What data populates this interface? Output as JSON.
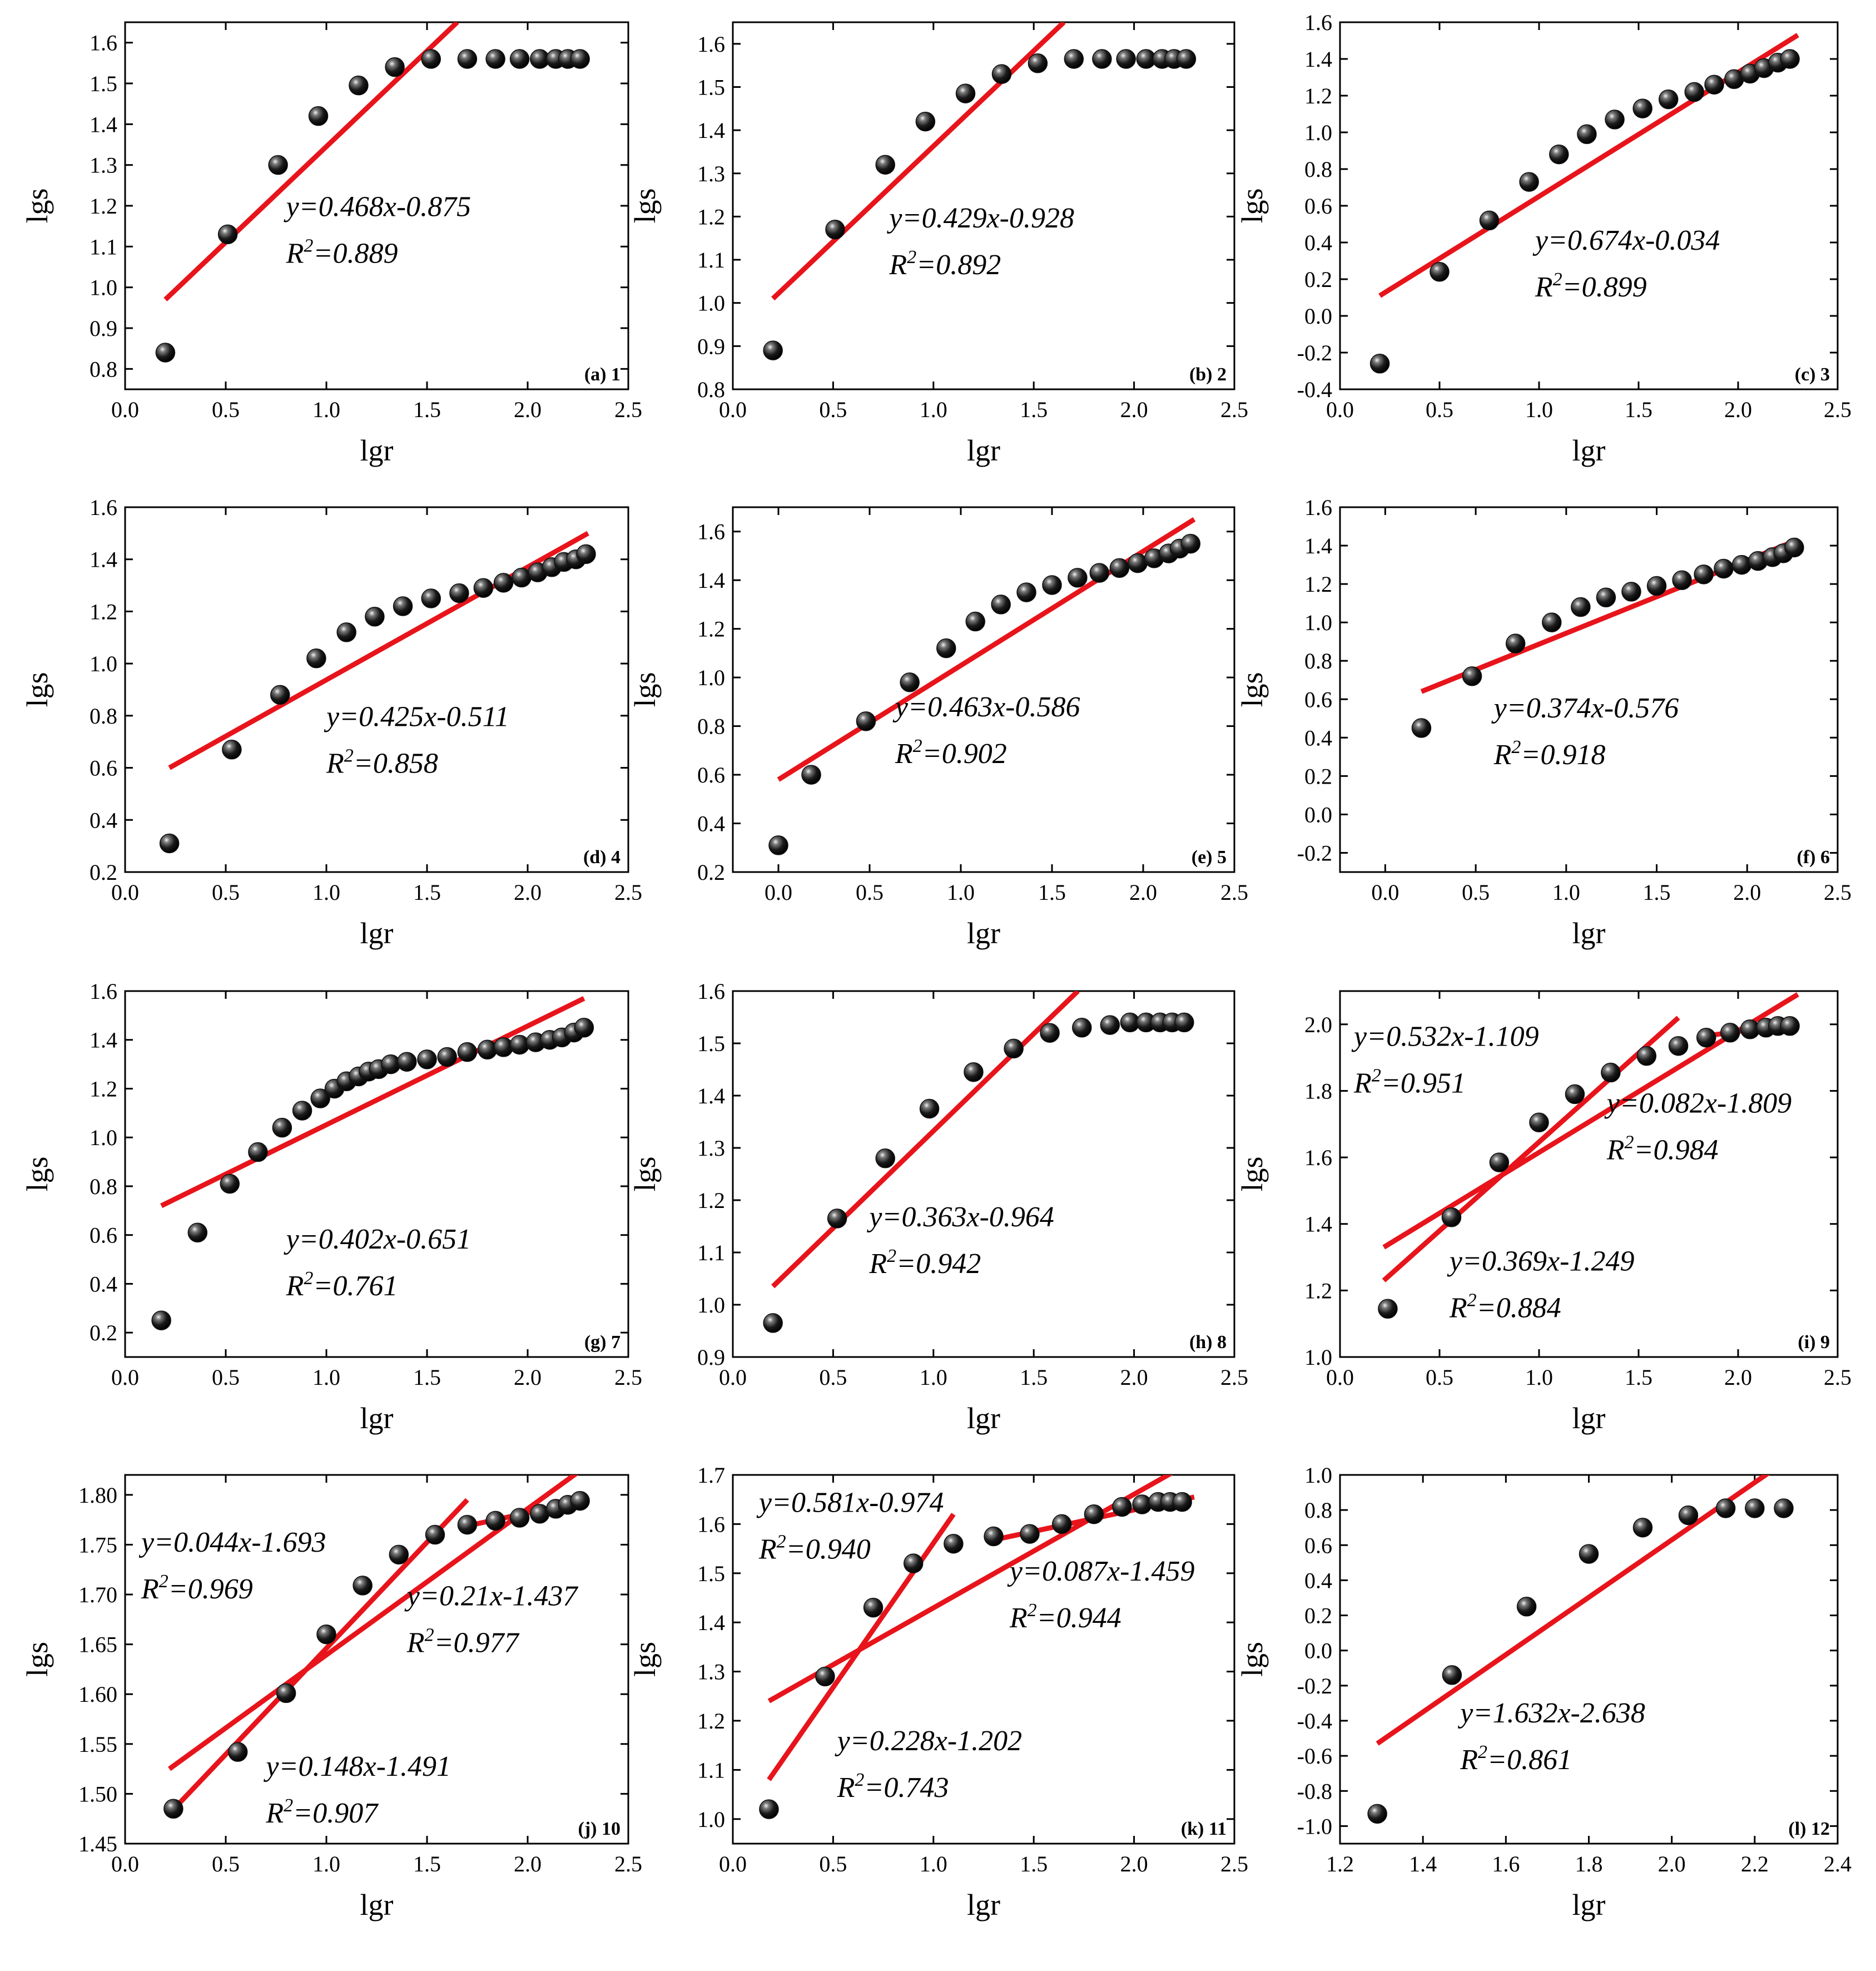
{
  "figure": {
    "x_label": "lgr",
    "y_label": "lgs"
  },
  "colors": {
    "fit_line": "#e8141b",
    "point_fill": "#111111",
    "axis": "#000000"
  },
  "chart_data": [
    {
      "type": "scatter",
      "panel": "(a) 1",
      "xlabel": "lgr",
      "ylabel": "lgs",
      "xlim": [
        0,
        2.5
      ],
      "ylim": [
        0.75,
        1.65
      ],
      "xticks": [
        0.0,
        0.5,
        1.0,
        1.5,
        2.0,
        2.5
      ],
      "xtick_labels": [
        "0.0",
        "0.5",
        "1.0",
        "1.5",
        "2.0",
        "2.5"
      ],
      "yticks": [
        0.8,
        0.9,
        1.0,
        1.1,
        1.2,
        1.3,
        1.4,
        1.5,
        1.6
      ],
      "ytick_labels": [
        "0.8",
        "0.9",
        "1.0",
        "1.1",
        "1.2",
        "1.3",
        "1.4",
        "1.5",
        "1.6"
      ],
      "x": [
        0.2,
        0.51,
        0.76,
        0.96,
        1.16,
        1.34,
        1.52,
        1.7,
        1.84,
        1.96,
        2.06,
        2.14,
        2.2,
        2.26
      ],
      "y": [
        0.84,
        1.13,
        1.3,
        1.42,
        1.495,
        1.54,
        1.56,
        1.56,
        1.56,
        1.56,
        1.56,
        1.56,
        1.56,
        1.56
      ],
      "fits": [
        {
          "x0": 0.2,
          "y0": 0.97,
          "x1": 1.65,
          "y1": 1.65,
          "equation": "y=0.468x-0.875",
          "r2": "=0.889",
          "eq_at": [
            0.8,
            1.175
          ]
        }
      ]
    },
    {
      "type": "scatter",
      "panel": "(b) 2",
      "xlabel": "lgr",
      "ylabel": "lgs",
      "xlim": [
        0,
        2.5
      ],
      "ylim": [
        0.8,
        1.65
      ],
      "xticks": [
        0.0,
        0.5,
        1.0,
        1.5,
        2.0,
        2.5
      ],
      "xtick_labels": [
        "0.0",
        "0.5",
        "1.0",
        "1.5",
        "2.0",
        "2.5"
      ],
      "yticks": [
        0.8,
        0.9,
        1.0,
        1.1,
        1.2,
        1.3,
        1.4,
        1.5,
        1.6
      ],
      "ytick_labels": [
        "0.8",
        "0.9",
        "1.0",
        "1.1",
        "1.2",
        "1.3",
        "1.4",
        "1.5",
        "1.6"
      ],
      "x": [
        0.2,
        0.51,
        0.76,
        0.96,
        1.16,
        1.34,
        1.52,
        1.7,
        1.84,
        1.96,
        2.06,
        2.14,
        2.2,
        2.26
      ],
      "y": [
        0.89,
        1.17,
        1.32,
        1.42,
        1.485,
        1.53,
        1.555,
        1.565,
        1.565,
        1.565,
        1.565,
        1.565,
        1.565,
        1.565
      ],
      "fits": [
        {
          "x0": 0.2,
          "y0": 1.01,
          "x1": 1.65,
          "y1": 1.65,
          "equation": "y=0.429x-0.928",
          "r2": "=0.892",
          "eq_at": [
            0.78,
            1.175
          ]
        }
      ]
    },
    {
      "type": "scatter",
      "panel": "(c) 3",
      "xlabel": "lgr",
      "ylabel": "lgs",
      "xlim": [
        0,
        2.5
      ],
      "ylim": [
        -0.4,
        1.6
      ],
      "xticks": [
        0.0,
        0.5,
        1.0,
        1.5,
        2.0,
        2.5
      ],
      "xtick_labels": [
        "0.0",
        "0.5",
        "1.0",
        "1.5",
        "2.0",
        "2.5"
      ],
      "yticks": [
        -0.4,
        -0.2,
        0.0,
        0.2,
        0.4,
        0.6,
        0.8,
        1.0,
        1.2,
        1.4,
        1.6
      ],
      "ytick_labels": [
        "-0.4",
        "-0.2",
        "0.0",
        "0.2",
        "0.4",
        "0.6",
        "0.8",
        "1.0",
        "1.2",
        "1.4",
        "1.6"
      ],
      "x": [
        0.2,
        0.5,
        0.75,
        0.95,
        1.1,
        1.24,
        1.38,
        1.52,
        1.65,
        1.78,
        1.88,
        1.98,
        2.06,
        2.13,
        2.2,
        2.26
      ],
      "y": [
        -0.26,
        0.24,
        0.52,
        0.73,
        0.88,
        0.99,
        1.07,
        1.13,
        1.18,
        1.22,
        1.26,
        1.29,
        1.32,
        1.35,
        1.38,
        1.4
      ],
      "fits": [
        {
          "x0": 0.2,
          "y0": 0.11,
          "x1": 2.3,
          "y1": 1.53,
          "equation": "y=0.674x-0.034",
          "r2": "=0.899",
          "eq_at": [
            0.98,
            0.36
          ]
        }
      ]
    },
    {
      "type": "scatter",
      "panel": "(d) 4",
      "xlabel": "lgr",
      "ylabel": "lgs",
      "xlim": [
        0,
        2.5
      ],
      "ylim": [
        0.2,
        1.6
      ],
      "xticks": [
        0.0,
        0.5,
        1.0,
        1.5,
        2.0,
        2.5
      ],
      "xtick_labels": [
        "0.0",
        "0.5",
        "1.0",
        "1.5",
        "2.0",
        "2.5"
      ],
      "yticks": [
        0.2,
        0.4,
        0.6,
        0.8,
        1.0,
        1.2,
        1.4,
        1.6
      ],
      "ytick_labels": [
        "0.2",
        "0.4",
        "0.6",
        "0.8",
        "1.0",
        "1.2",
        "1.4",
        "1.6"
      ],
      "x": [
        0.22,
        0.53,
        0.77,
        0.95,
        1.1,
        1.24,
        1.38,
        1.52,
        1.66,
        1.78,
        1.88,
        1.97,
        2.05,
        2.12,
        2.18,
        2.24,
        2.29
      ],
      "y": [
        0.31,
        0.67,
        0.88,
        1.02,
        1.12,
        1.18,
        1.22,
        1.25,
        1.27,
        1.29,
        1.31,
        1.33,
        1.35,
        1.37,
        1.39,
        1.4,
        1.42
      ],
      "fits": [
        {
          "x0": 0.22,
          "y0": 0.6,
          "x1": 2.3,
          "y1": 1.5,
          "equation": "y=0.425x-0.511",
          "r2": "=0.858",
          "eq_at": [
            1.0,
            0.76
          ]
        }
      ]
    },
    {
      "type": "scatter",
      "panel": "(e) 5",
      "xlabel": "lgr",
      "ylabel": "lgs",
      "xlim": [
        -0.25,
        2.5
      ],
      "ylim": [
        0.2,
        1.7
      ],
      "xticks": [
        0.0,
        0.5,
        1.0,
        1.5,
        2.0,
        2.5
      ],
      "xtick_labels": [
        "0.0",
        "0.5",
        "1.0",
        "1.5",
        "2.0",
        "2.5"
      ],
      "yticks": [
        0.2,
        0.4,
        0.6,
        0.8,
        1.0,
        1.2,
        1.4,
        1.6
      ],
      "ytick_labels": [
        "0.2",
        "0.4",
        "0.6",
        "0.8",
        "1.0",
        "1.2",
        "1.4",
        "1.6"
      ],
      "x": [
        0.0,
        0.18,
        0.48,
        0.72,
        0.92,
        1.08,
        1.22,
        1.36,
        1.5,
        1.64,
        1.76,
        1.87,
        1.97,
        2.06,
        2.14,
        2.2,
        2.26
      ],
      "y": [
        0.31,
        0.6,
        0.82,
        0.98,
        1.12,
        1.23,
        1.3,
        1.35,
        1.38,
        1.41,
        1.43,
        1.45,
        1.47,
        1.49,
        1.51,
        1.53,
        1.55
      ],
      "fits": [
        {
          "x0": 0.0,
          "y0": 0.58,
          "x1": 2.28,
          "y1": 1.65,
          "equation": "y=0.463x-0.586",
          "r2": "=0.902",
          "eq_at": [
            0.64,
            0.84
          ]
        }
      ]
    },
    {
      "type": "scatter",
      "panel": "(f) 6",
      "xlabel": "lgr",
      "ylabel": "lgs",
      "xlim": [
        -0.25,
        2.5
      ],
      "ylim": [
        -0.3,
        1.6
      ],
      "xticks": [
        0.0,
        0.5,
        1.0,
        1.5,
        2.0,
        2.5
      ],
      "xtick_labels": [
        "0.0",
        "0.5",
        "1.0",
        "1.5",
        "2.0",
        "2.5"
      ],
      "yticks": [
        -0.2,
        0.0,
        0.2,
        0.4,
        0.6,
        0.8,
        1.0,
        1.2,
        1.4,
        1.6
      ],
      "ytick_labels": [
        "-0.2",
        "0.0",
        "0.2",
        "0.4",
        "0.6",
        "0.8",
        "1.0",
        "1.2",
        "1.4",
        "1.6"
      ],
      "x": [
        0.2,
        0.48,
        0.72,
        0.92,
        1.08,
        1.22,
        1.36,
        1.5,
        1.64,
        1.76,
        1.87,
        1.97,
        2.06,
        2.14,
        2.2,
        2.26
      ],
      "y": [
        0.45,
        0.72,
        0.89,
        1.0,
        1.08,
        1.13,
        1.16,
        1.19,
        1.22,
        1.25,
        1.28,
        1.3,
        1.32,
        1.34,
        1.36,
        1.39
      ],
      "fits": [
        {
          "x0": 0.2,
          "y0": 0.64,
          "x1": 2.28,
          "y1": 1.43,
          "equation": "y=0.374x-0.576",
          "r2": "=0.918",
          "eq_at": [
            0.6,
            0.505
          ]
        }
      ]
    },
    {
      "type": "scatter",
      "panel": "(g) 7",
      "xlabel": "lgr",
      "ylabel": "lgs",
      "xlim": [
        0,
        2.5
      ],
      "ylim": [
        0.1,
        1.6
      ],
      "xticks": [
        0.0,
        0.5,
        1.0,
        1.5,
        2.0,
        2.5
      ],
      "xtick_labels": [
        "0.0",
        "0.5",
        "1.0",
        "1.5",
        "2.0",
        "2.5"
      ],
      "yticks": [
        0.2,
        0.4,
        0.6,
        0.8,
        1.0,
        1.2,
        1.4,
        1.6
      ],
      "ytick_labels": [
        "0.2",
        "0.4",
        "0.6",
        "0.8",
        "1.0",
        "1.2",
        "1.4",
        "1.6"
      ],
      "x": [
        0.18,
        0.36,
        0.52,
        0.66,
        0.78,
        0.88,
        0.97,
        1.04,
        1.1,
        1.16,
        1.21,
        1.26,
        1.32,
        1.4,
        1.5,
        1.6,
        1.7,
        1.8,
        1.88,
        1.96,
        2.04,
        2.11,
        2.17,
        2.23,
        2.28
      ],
      "y": [
        0.25,
        0.61,
        0.81,
        0.94,
        1.04,
        1.11,
        1.16,
        1.2,
        1.23,
        1.25,
        1.27,
        1.28,
        1.3,
        1.31,
        1.32,
        1.33,
        1.35,
        1.36,
        1.37,
        1.38,
        1.39,
        1.4,
        1.41,
        1.43,
        1.45
      ],
      "fits": [
        {
          "x0": 0.18,
          "y0": 0.72,
          "x1": 2.28,
          "y1": 1.57,
          "equation": "y=0.402x-0.651",
          "r2": "=0.761",
          "eq_at": [
            0.8,
            0.545
          ]
        }
      ]
    },
    {
      "type": "scatter",
      "panel": "(h) 8",
      "xlabel": "lgr",
      "ylabel": "lgs",
      "xlim": [
        0,
        2.5
      ],
      "ylim": [
        0.9,
        1.6
      ],
      "xticks": [
        0.0,
        0.5,
        1.0,
        1.5,
        2.0,
        2.5
      ],
      "xtick_labels": [
        "0.0",
        "0.5",
        "1.0",
        "1.5",
        "2.0",
        "2.5"
      ],
      "yticks": [
        0.9,
        1.0,
        1.1,
        1.2,
        1.3,
        1.4,
        1.5,
        1.6
      ],
      "ytick_labels": [
        "0.9",
        "1.0",
        "1.1",
        "1.2",
        "1.3",
        "1.4",
        "1.5",
        "1.6"
      ],
      "x": [
        0.2,
        0.52,
        0.76,
        0.98,
        1.2,
        1.4,
        1.58,
        1.74,
        1.88,
        1.98,
        2.06,
        2.13,
        2.19,
        2.25
      ],
      "y": [
        0.965,
        1.165,
        1.28,
        1.375,
        1.445,
        1.49,
        1.52,
        1.53,
        1.535,
        1.54,
        1.54,
        1.54,
        1.54,
        1.54
      ],
      "fits": [
        {
          "x0": 0.2,
          "y0": 1.035,
          "x1": 1.72,
          "y1": 1.6,
          "equation": "y=0.363x-0.964",
          "r2": "=0.942",
          "eq_at": [
            0.68,
            1.15
          ]
        }
      ]
    },
    {
      "type": "scatter",
      "panel": "(i) 9",
      "xlabel": "lgr",
      "ylabel": "lgs",
      "xlim": [
        0,
        2.5
      ],
      "ylim": [
        1.0,
        2.1
      ],
      "xticks": [
        0.0,
        0.5,
        1.0,
        1.5,
        2.0,
        2.5
      ],
      "xtick_labels": [
        "0.0",
        "0.5",
        "1.0",
        "1.5",
        "2.0",
        "2.5"
      ],
      "yticks": [
        1.0,
        1.2,
        1.4,
        1.6,
        1.8,
        2.0
      ],
      "ytick_labels": [
        "1.0",
        "1.2",
        "1.4",
        "1.6",
        "1.8",
        "2.0"
      ],
      "x": [
        0.24,
        0.56,
        0.8,
        1.0,
        1.18,
        1.36,
        1.54,
        1.7,
        1.84,
        1.96,
        2.06,
        2.14,
        2.2,
        2.26
      ],
      "y": [
        1.145,
        1.42,
        1.585,
        1.705,
        1.79,
        1.855,
        1.905,
        1.935,
        1.96,
        1.975,
        1.985,
        1.99,
        1.995,
        1.995
      ],
      "fits": [
        {
          "x0": 0.22,
          "y0": 1.23,
          "x1": 1.7,
          "y1": 2.02,
          "equation": "y=0.532x-1.109",
          "r2": "=0.951",
          "eq_at": [
            0.07,
            1.935
          ]
        },
        {
          "x0": 0.22,
          "y0": 1.33,
          "x1": 2.3,
          "y1": 2.09,
          "equation": "y=0.369x-1.249",
          "r2": "=0.884",
          "eq_at": [
            0.55,
            1.26
          ]
        },
        {
          "x0": 1.8,
          "y0": 1.962,
          "x1": 2.3,
          "y1": 2.003,
          "equation": "y=0.082x-1.809",
          "r2": "=0.984",
          "eq_at": [
            1.34,
            1.735
          ]
        }
      ]
    },
    {
      "type": "scatter",
      "panel": "(j) 10",
      "xlabel": "lgr",
      "ylabel": "lgs",
      "xlim": [
        0,
        2.5
      ],
      "ylim": [
        1.45,
        1.82
      ],
      "xticks": [
        0.0,
        0.5,
        1.0,
        1.5,
        2.0,
        2.5
      ],
      "xtick_labels": [
        "0.0",
        "0.5",
        "1.0",
        "1.5",
        "2.0",
        "2.5"
      ],
      "yticks": [
        1.45,
        1.5,
        1.55,
        1.6,
        1.65,
        1.7,
        1.75,
        1.8
      ],
      "ytick_labels": [
        "1.45",
        "1.50",
        "1.55",
        "1.60",
        "1.65",
        "1.70",
        "1.75",
        "1.80"
      ],
      "x": [
        0.24,
        0.56,
        0.8,
        1.0,
        1.18,
        1.36,
        1.54,
        1.7,
        1.84,
        1.96,
        2.06,
        2.14,
        2.2,
        2.26
      ],
      "y": [
        1.485,
        1.542,
        1.601,
        1.66,
        1.709,
        1.74,
        1.76,
        1.77,
        1.774,
        1.777,
        1.781,
        1.786,
        1.79,
        1.794
      ],
      "fits": [
        {
          "x0": 0.22,
          "y0": 1.48,
          "x1": 1.7,
          "y1": 1.795,
          "equation": "y=0.044x-1.693",
          "r2": "=0.969",
          "eq_at": [
            0.08,
            1.743
          ]
        },
        {
          "x0": 0.22,
          "y0": 1.525,
          "x1": 2.3,
          "y1": 1.83,
          "equation": "y=0.148x-1.491",
          "r2": "=0.907",
          "eq_at": [
            0.7,
            1.518
          ]
        },
        {
          "x0": 1.68,
          "y0": 1.768,
          "x1": 2.3,
          "y1": 1.795,
          "equation": "y=0.21x-1.437",
          "r2": "=0.977",
          "eq_at": [
            1.4,
            1.689
          ]
        }
      ]
    },
    {
      "type": "scatter",
      "panel": "(k) 11",
      "xlabel": "lgr",
      "ylabel": "lgs",
      "xlim": [
        0,
        2.5
      ],
      "ylim": [
        0.95,
        1.7
      ],
      "xticks": [
        0.0,
        0.5,
        1.0,
        1.5,
        2.0,
        2.5
      ],
      "xtick_labels": [
        "0.0",
        "0.5",
        "1.0",
        "1.5",
        "2.0",
        "2.5"
      ],
      "yticks": [
        1.0,
        1.1,
        1.2,
        1.3,
        1.4,
        1.5,
        1.6,
        1.7
      ],
      "ytick_labels": [
        "1.0",
        "1.1",
        "1.2",
        "1.3",
        "1.4",
        "1.5",
        "1.6",
        "1.7"
      ],
      "x": [
        0.18,
        0.46,
        0.7,
        0.9,
        1.1,
        1.3,
        1.48,
        1.64,
        1.8,
        1.94,
        2.04,
        2.12,
        2.18,
        2.24
      ],
      "y": [
        1.02,
        1.29,
        1.43,
        1.52,
        1.56,
        1.575,
        1.58,
        1.6,
        1.62,
        1.635,
        1.64,
        1.645,
        1.645,
        1.645
      ],
      "fits": [
        {
          "x0": 0.18,
          "y0": 1.08,
          "x1": 1.1,
          "y1": 1.62,
          "equation": "y=0.581x-0.974",
          "r2": "=0.940",
          "eq_at": [
            0.13,
            1.625
          ]
        },
        {
          "x0": 0.18,
          "y0": 1.24,
          "x1": 2.3,
          "y1": 1.73,
          "equation": "y=0.228x-1.202",
          "r2": "=0.743",
          "eq_at": [
            0.52,
            1.14
          ]
        },
        {
          "x0": 1.28,
          "y0": 1.566,
          "x1": 2.3,
          "y1": 1.655,
          "equation": "y=0.087x-1.459",
          "r2": "=0.944",
          "eq_at": [
            1.38,
            1.485
          ]
        }
      ]
    },
    {
      "type": "scatter",
      "panel": "(l) 12",
      "xlabel": "lgr",
      "ylabel": "lgs",
      "xlim": [
        1.2,
        2.4
      ],
      "ylim": [
        -1.1,
        1.0
      ],
      "xticks": [
        1.2,
        1.4,
        1.6,
        1.8,
        2.0,
        2.2,
        2.4
      ],
      "xtick_labels": [
        "1.2",
        "1.4",
        "1.6",
        "1.8",
        "2.0",
        "2.2",
        "2.4"
      ],
      "yticks": [
        -1.0,
        -0.8,
        -0.6,
        -0.4,
        -0.2,
        0.0,
        0.2,
        0.4,
        0.6,
        0.8,
        1.0
      ],
      "ytick_labels": [
        "-1.0",
        "-0.8",
        "-0.6",
        "-0.4",
        "-0.2",
        "0.0",
        "0.2",
        "0.4",
        "0.6",
        "0.8",
        "1.0"
      ],
      "x": [
        1.29,
        1.47,
        1.65,
        1.8,
        1.93,
        2.04,
        2.13,
        2.2,
        2.27
      ],
      "y": [
        -0.93,
        -0.14,
        0.25,
        0.55,
        0.7,
        0.77,
        0.81,
        0.81,
        0.81
      ],
      "fits": [
        {
          "x0": 1.29,
          "y0": -0.53,
          "x1": 2.3,
          "y1": 1.12,
          "equation": "y=1.632x-2.638",
          "r2": "=0.861",
          "eq_at": [
            1.49,
            -0.41
          ]
        }
      ]
    }
  ]
}
